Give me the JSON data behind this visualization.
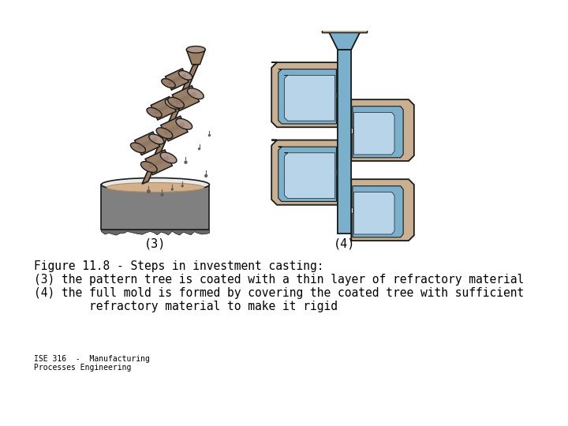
{
  "title_line1": "Figure 11.8 ‑ Steps in investment casting:",
  "title_line2": "(3) the pattern tree is coated with a thin layer of refractory material",
  "title_line3": "(4) the full mold is formed by covering the coated tree with sufficient",
  "title_line4": "        refractory material to make it rigid",
  "footer": "ISE 316  -  Manufacturing\nProcesses Engineering",
  "label3": "(3)",
  "label4": "(4)",
  "bg_color": "#ffffff",
  "text_color": "#000000",
  "font_size_main": 10.5,
  "font_size_footer": 7,
  "font_size_label": 11,
  "bowl_color": "#808080",
  "bowl_rim_color": "#d0d0d0",
  "slurry_color": "#d2b08a",
  "rod_color": "#9a8060",
  "wax_color": "#9a8068",
  "mold_tan": "#c8b090",
  "mold_blue": "#7ab0cc",
  "mold_blue_light": "#b8d4e8",
  "outline": "#1a1a1a"
}
